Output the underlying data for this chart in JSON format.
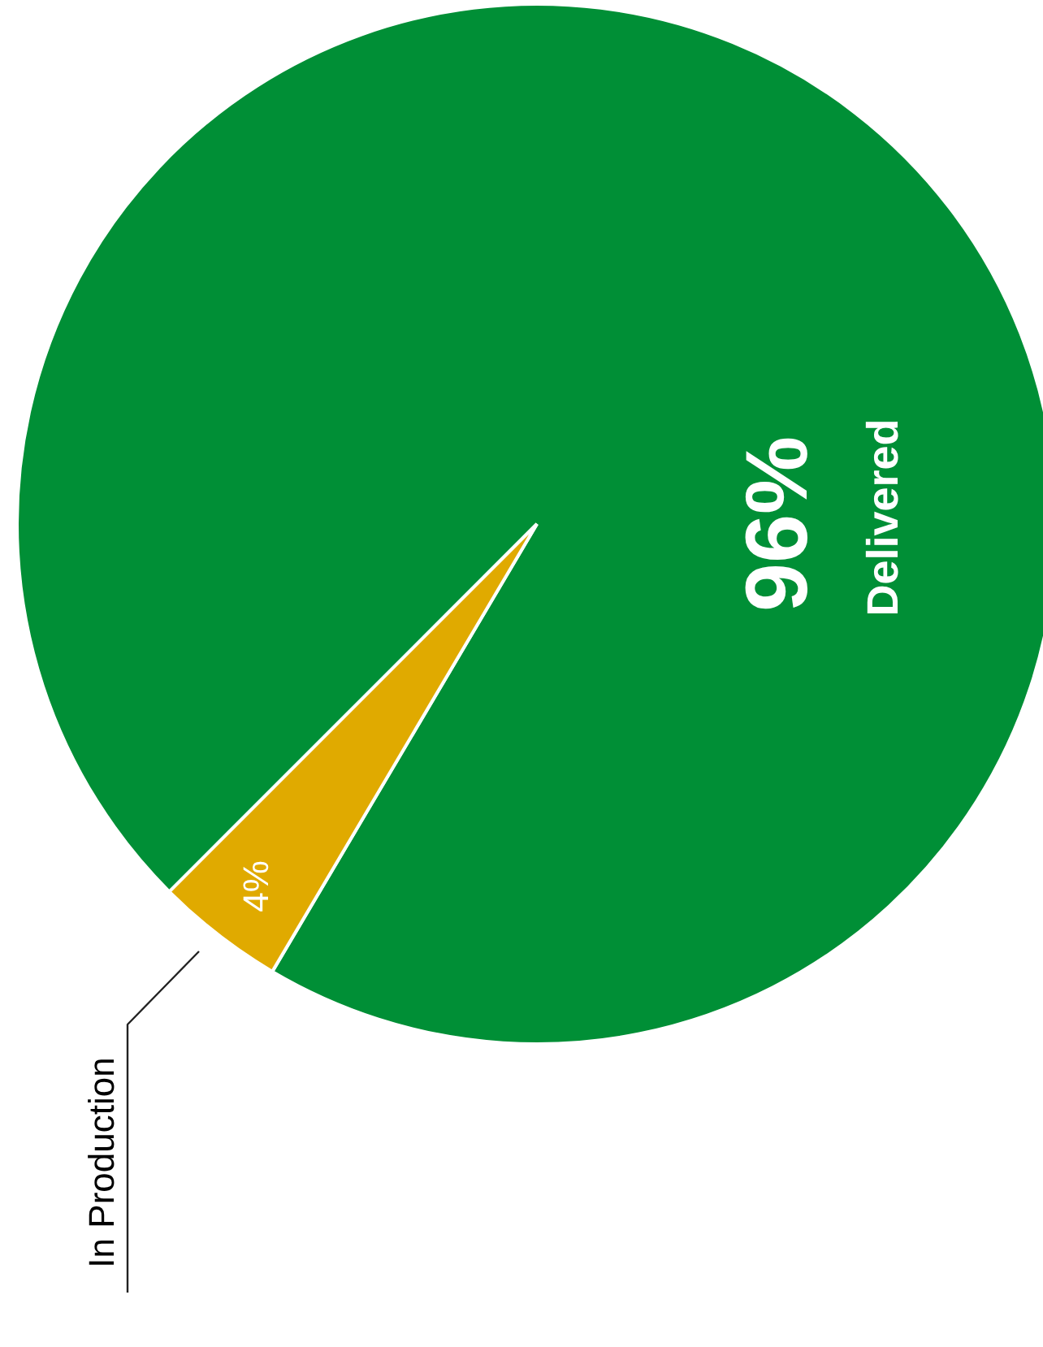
{
  "chart_data": {
    "type": "pie",
    "categories": [
      "Delivered",
      "In Production"
    ],
    "values": [
      96,
      4
    ],
    "colors": [
      "#008f36",
      "#e0aa00"
    ],
    "value_labels": [
      "96%",
      "4%"
    ]
  }
}
